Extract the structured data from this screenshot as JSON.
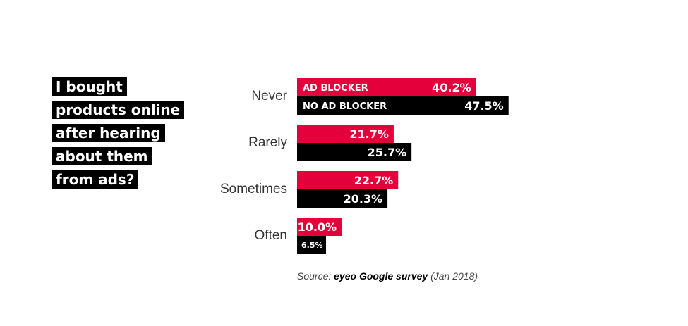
{
  "headline": {
    "lines": [
      "I bought",
      "products online",
      "after hearing",
      "about them",
      "from ads?"
    ]
  },
  "chart_data": {
    "type": "bar",
    "orientation": "horizontal",
    "categories": [
      "Never",
      "Rarely",
      "Sometimes",
      "Often"
    ],
    "series": [
      {
        "name": "AD BLOCKER",
        "values": [
          40.2,
          21.7,
          22.7,
          10.0
        ],
        "color": "#e4003a"
      },
      {
        "name": "NO AD BLOCKER",
        "values": [
          47.5,
          25.7,
          20.3,
          6.5
        ],
        "color": "#000000"
      }
    ],
    "value_labels": [
      [
        "40.2%",
        "21.7%",
        "22.7%",
        "10.0%"
      ],
      [
        "47.5%",
        "25.7%",
        "20.3%",
        "6.5%"
      ]
    ],
    "title": "",
    "xlabel": "",
    "ylabel": "",
    "xlim": [
      0,
      100
    ],
    "grid": false,
    "legend": "inside-first-bars"
  },
  "source": {
    "prefix": "Source: ",
    "name": "eyeo Google survey",
    "suffix": " (Jan 2018)"
  }
}
